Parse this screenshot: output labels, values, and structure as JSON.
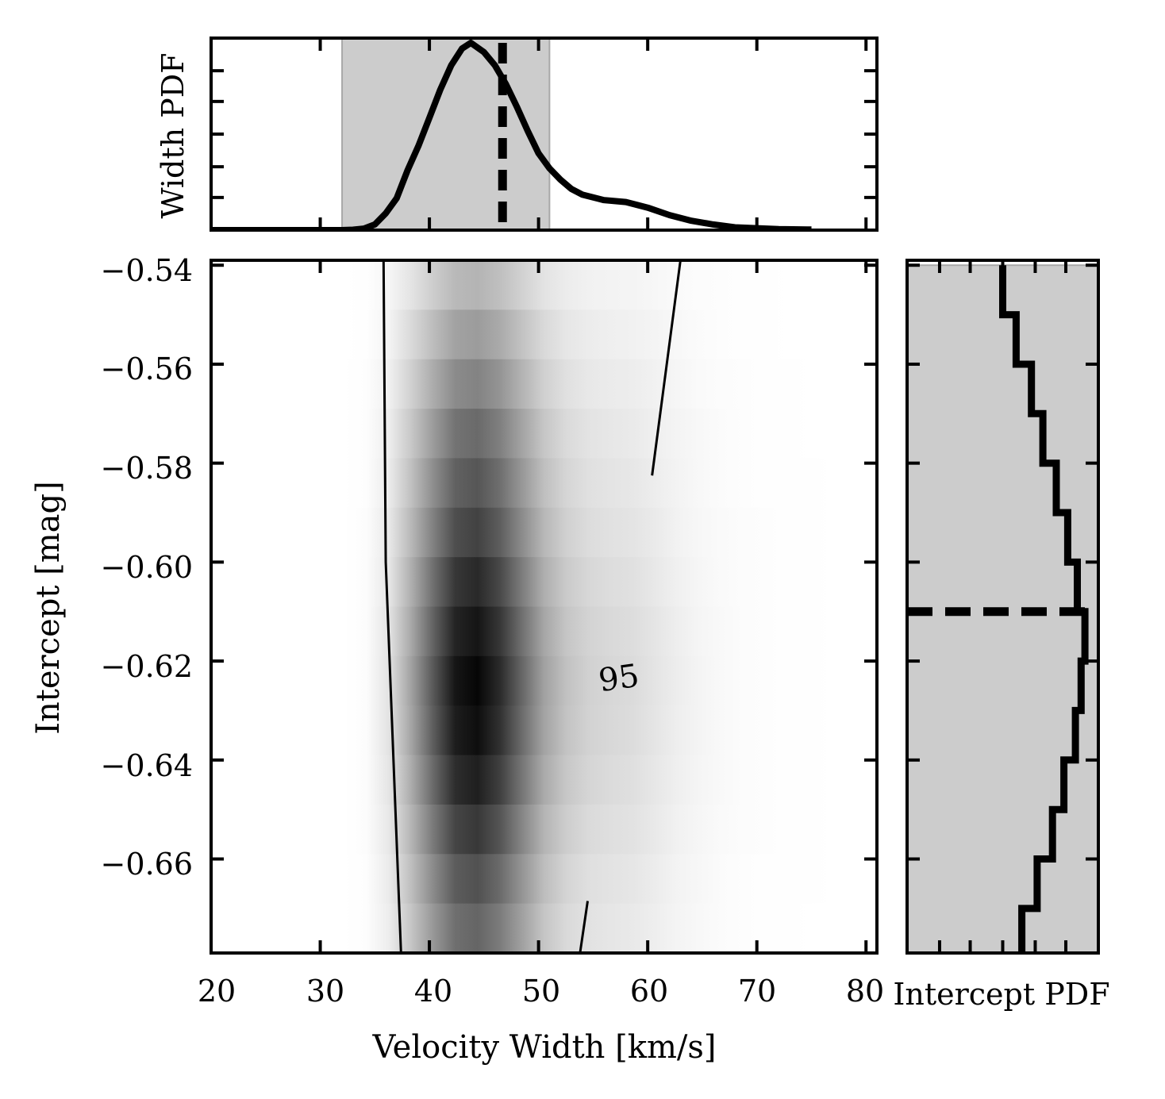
{
  "chart_data": [
    {
      "panel": "top",
      "type": "line",
      "ylabel": "Width PDF",
      "xlim": [
        20,
        81
      ],
      "shaded_interval": [
        32.0,
        51.0
      ],
      "vline": 46.7,
      "curve": {
        "x": [
          20,
          30,
          32,
          33,
          34,
          35,
          36,
          37,
          38,
          39,
          40,
          41,
          42,
          43,
          43.8,
          45,
          46,
          47,
          48,
          49,
          50,
          51,
          52,
          53,
          54,
          56,
          58,
          60,
          62,
          64,
          66,
          68,
          70,
          72,
          75
        ],
        "y": [
          0.0,
          0.0,
          0.0,
          0.002,
          0.008,
          0.03,
          0.09,
          0.17,
          0.32,
          0.45,
          0.6,
          0.75,
          0.88,
          0.97,
          1.0,
          0.95,
          0.88,
          0.78,
          0.66,
          0.53,
          0.41,
          0.33,
          0.27,
          0.22,
          0.19,
          0.16,
          0.15,
          0.12,
          0.08,
          0.05,
          0.03,
          0.015,
          0.01,
          0.005,
          0.003
        ]
      }
    },
    {
      "panel": "main",
      "type": "heatmap",
      "xlabel": "Velocity Width [km/s]",
      "ylabel": "Intercept [mag]",
      "xlim": [
        20,
        81
      ],
      "ylim": [
        -0.679,
        -0.539
      ],
      "xticks": [
        "20",
        "30",
        "40",
        "50",
        "60",
        "70",
        "80"
      ],
      "yticks": [
        "−0.54",
        "−0.56",
        "−0.58",
        "−0.60",
        "−0.62",
        "−0.64",
        "−0.66"
      ],
      "contour_label": "95",
      "colormap": "greys"
    },
    {
      "panel": "right",
      "type": "step",
      "xlabel": "Intercept PDF",
      "ylim": [
        -0.679,
        -0.539
      ],
      "hline": -0.61,
      "steps": {
        "y": [
          -0.54,
          -0.55,
          -0.56,
          -0.57,
          -0.58,
          -0.59,
          -0.6,
          -0.61,
          -0.62,
          -0.63,
          -0.64,
          -0.65,
          -0.66,
          -0.67,
          -0.679
        ],
        "x": [
          0.5,
          0.57,
          0.65,
          0.71,
          0.78,
          0.84,
          0.89,
          0.93,
          0.91,
          0.88,
          0.82,
          0.76,
          0.68,
          0.6,
          0.6
        ]
      }
    }
  ],
  "colors": {
    "axis": "#000000",
    "shade": "#cccccc",
    "shade_edge": "#a8a8a8",
    "curve": "#000000"
  }
}
